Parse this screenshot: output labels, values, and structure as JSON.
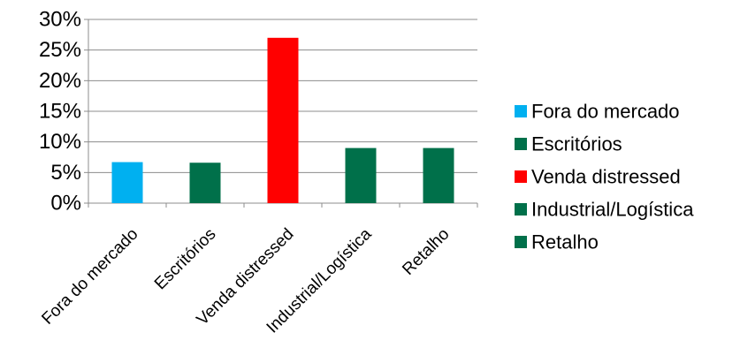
{
  "chart_data": {
    "type": "bar",
    "categories": [
      "Fora do mercado",
      "Escritórios",
      "Venda distressed",
      "Industrial/Logística",
      "Retalho"
    ],
    "values": [
      0.067,
      0.066,
      0.27,
      0.09,
      0.09
    ],
    "colors": [
      "#00B0F0",
      "#00704A",
      "#FF0000",
      "#00704A",
      "#00704A"
    ],
    "y_ticks": [
      "0%",
      "5%",
      "10%",
      "15%",
      "20%",
      "25%",
      "30%"
    ],
    "ylim": [
      0,
      0.3
    ],
    "grid": true,
    "legend_position": "right",
    "legend": [
      {
        "label": "Fora do mercado",
        "color": "#00B0F0"
      },
      {
        "label": "Escritórios",
        "color": "#00704A"
      },
      {
        "label": "Venda distressed",
        "color": "#FF0000"
      },
      {
        "label": "Industrial/Logística",
        "color": "#00704A"
      },
      {
        "label": "Retalho",
        "color": "#00704A"
      }
    ]
  }
}
